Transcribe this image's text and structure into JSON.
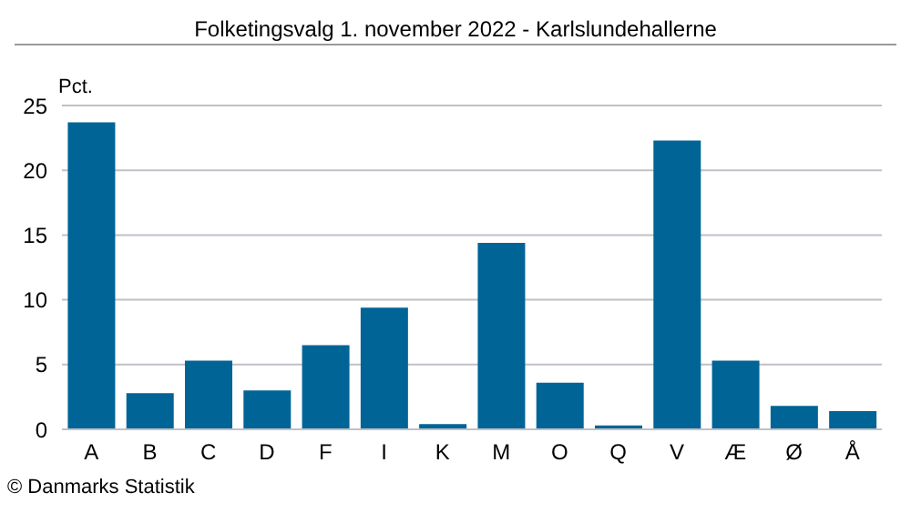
{
  "chart_data": {
    "type": "bar",
    "title": "Folketingsvalg 1. november 2022 - Karlslundehallerne",
    "ylabel": "Pct.",
    "categories": [
      "A",
      "B",
      "C",
      "D",
      "F",
      "I",
      "K",
      "M",
      "O",
      "Q",
      "V",
      "Æ",
      "Ø",
      "Å"
    ],
    "values": [
      23.7,
      2.8,
      5.3,
      3.0,
      6.5,
      9.4,
      0.4,
      14.4,
      3.6,
      0.3,
      22.3,
      5.3,
      1.8,
      1.4
    ],
    "color": "#006496",
    "ylim": [
      0,
      25
    ],
    "yticks": [
      0,
      5,
      10,
      15,
      20,
      25
    ],
    "grid": "y",
    "annotations": [
      "© Danmarks Statistik"
    ]
  }
}
